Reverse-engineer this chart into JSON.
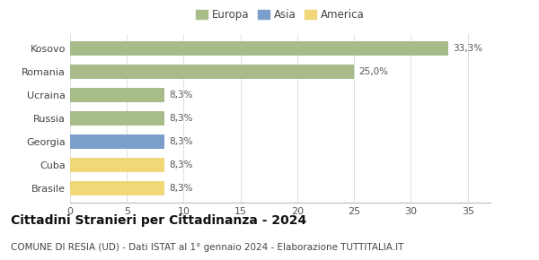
{
  "categories": [
    "Brasile",
    "Cuba",
    "Georgia",
    "Russia",
    "Ucraina",
    "Romania",
    "Kosovo"
  ],
  "values": [
    8.3,
    8.3,
    8.3,
    8.3,
    8.3,
    25.0,
    33.3
  ],
  "bar_colors": [
    "#f0d878",
    "#f0d878",
    "#7b9fcb",
    "#a8bc8a",
    "#a8bc8a",
    "#a8bc8a",
    "#a8bc8a"
  ],
  "labels": [
    "8,3%",
    "8,3%",
    "8,3%",
    "8,3%",
    "8,3%",
    "25,0%",
    "33,3%"
  ],
  "legend": [
    {
      "label": "Europa",
      "color": "#a8bc8a"
    },
    {
      "label": "Asia",
      "color": "#7b9fcb"
    },
    {
      "label": "America",
      "color": "#f0d878"
    }
  ],
  "title": "Cittadini Stranieri per Cittadinanza - 2024",
  "subtitle": "COMUNE DI RESIA (UD) - Dati ISTAT al 1° gennaio 2024 - Elaborazione TUTTITALIA.IT",
  "xlim": [
    0,
    37
  ],
  "xticks": [
    0,
    5,
    10,
    15,
    20,
    25,
    30,
    35
  ],
  "background_color": "#ffffff",
  "grid_color": "#e0e0e0",
  "title_fontsize": 10,
  "subtitle_fontsize": 7.5,
  "label_fontsize": 7.5,
  "tick_fontsize": 8,
  "legend_fontsize": 8.5
}
